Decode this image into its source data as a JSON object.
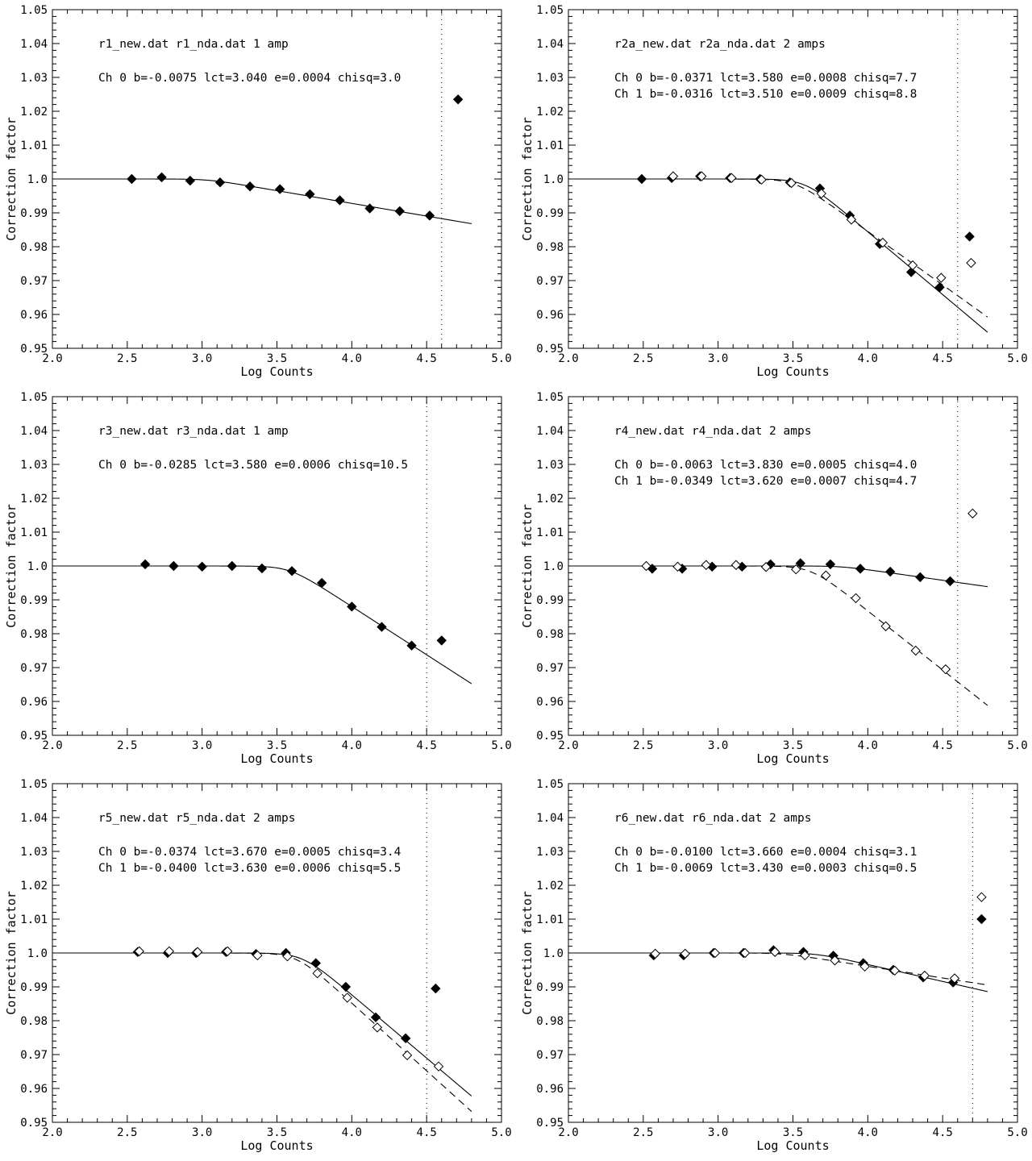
{
  "chart_data": [
    {
      "type": "scatter",
      "title": "",
      "annotations": {
        "files": "r1_new.dat   r1_nda.dat    1 amp",
        "ch0": "Ch 0   b=-0.0075 lct=3.040 e=0.0004 chisq=3.0",
        "ch1": ""
      },
      "xlabel": "Log Counts",
      "ylabel": "Correction factor",
      "xlim": [
        2.0,
        5.0
      ],
      "ylim": [
        0.95,
        1.05
      ],
      "xticks": [
        "2.0",
        "2.5",
        "3.0",
        "3.5",
        "4.0",
        "4.5",
        "5.0"
      ],
      "yticks": [
        "0.95",
        "0.96",
        "0.97",
        "0.98",
        "0.99",
        "1.0",
        "1.01",
        "1.02",
        "1.03",
        "1.04",
        "1.05"
      ],
      "cutoff_x": 4.6,
      "series": [
        {
          "channel": 0,
          "marker": "filled-diamond",
          "line": "solid",
          "b": -0.0075,
          "lct": 3.04,
          "x": [
            2.53,
            2.73,
            2.92,
            3.12,
            3.32,
            3.52,
            3.72,
            3.92,
            4.12,
            4.32,
            4.52,
            4.71
          ],
          "y": [
            1.0,
            1.0005,
            0.9995,
            0.999,
            0.9978,
            0.997,
            0.9955,
            0.9937,
            0.9913,
            0.9905,
            0.9892,
            1.0235
          ]
        }
      ]
    },
    {
      "type": "scatter",
      "title": "",
      "annotations": {
        "files": "r2a_new.dat   r2a_nda.dat    2 amps",
        "ch0": "Ch 0   b=-0.0371 lct=3.580 e=0.0008 chisq=7.7",
        "ch1": "Ch 1   b=-0.0316 lct=3.510 e=0.0009 chisq=8.8"
      },
      "xlabel": "Log Counts",
      "ylabel": "Correction factor",
      "xlim": [
        2.0,
        5.0
      ],
      "ylim": [
        0.95,
        1.05
      ],
      "xticks": [
        "2.0",
        "2.5",
        "3.0",
        "3.5",
        "4.0",
        "4.5",
        "5.0"
      ],
      "yticks": [
        "0.95",
        "0.96",
        "0.97",
        "0.98",
        "0.99",
        "1.0",
        "1.01",
        "1.02",
        "1.03",
        "1.04",
        "1.05"
      ],
      "cutoff_x": 4.6,
      "series": [
        {
          "channel": 0,
          "marker": "filled-diamond",
          "line": "solid",
          "b": -0.0371,
          "lct": 3.58,
          "x": [
            2.49,
            2.69,
            2.88,
            3.08,
            3.28,
            3.48,
            3.68,
            3.88,
            4.08,
            4.29,
            4.48,
            4.68
          ],
          "y": [
            1.0,
            1.0003,
            1.0008,
            1.0003,
            1.0,
            0.999,
            0.9972,
            0.9892,
            0.9808,
            0.9725,
            0.968,
            0.983
          ]
        },
        {
          "channel": 1,
          "marker": "open-diamond",
          "line": "dashed",
          "b": -0.0316,
          "lct": 3.51,
          "x": [
            2.7,
            2.89,
            3.09,
            3.29,
            3.49,
            3.69,
            3.89,
            4.1,
            4.3,
            4.49,
            4.69
          ],
          "y": [
            1.0008,
            1.0008,
            1.0003,
            0.9998,
            0.9988,
            0.9957,
            0.988,
            0.9812,
            0.9745,
            0.9708,
            0.9752
          ]
        }
      ]
    },
    {
      "type": "scatter",
      "title": "",
      "annotations": {
        "files": "r3_new.dat   r3_nda.dat    1 amp",
        "ch0": "Ch 0   b=-0.0285 lct=3.580 e=0.0006 chisq=10.5",
        "ch1": ""
      },
      "xlabel": "Log Counts",
      "ylabel": "Correction factor",
      "xlim": [
        2.0,
        5.0
      ],
      "ylim": [
        0.95,
        1.05
      ],
      "xticks": [
        "2.0",
        "2.5",
        "3.0",
        "3.5",
        "4.0",
        "4.5",
        "5.0"
      ],
      "yticks": [
        "0.95",
        "0.96",
        "0.97",
        "0.98",
        "0.99",
        "1.0",
        "1.01",
        "1.02",
        "1.03",
        "1.04",
        "1.05"
      ],
      "cutoff_x": 4.5,
      "series": [
        {
          "channel": 0,
          "marker": "filled-diamond",
          "line": "solid",
          "b": -0.0285,
          "lct": 3.58,
          "x": [
            2.62,
            2.81,
            3.0,
            3.2,
            3.4,
            3.6,
            3.8,
            4.0,
            4.2,
            4.4,
            4.6
          ],
          "y": [
            1.0005,
            1.0,
            0.9998,
            1.0,
            0.9993,
            0.9985,
            0.995,
            0.988,
            0.982,
            0.9765,
            0.978
          ]
        }
      ]
    },
    {
      "type": "scatter",
      "title": "",
      "annotations": {
        "files": "r4_new.dat   r4_nda.dat    2 amps",
        "ch0": "Ch 0   b=-0.0063 lct=3.830 e=0.0005 chisq=4.0",
        "ch1": "Ch 1   b=-0.0349 lct=3.620 e=0.0007 chisq=4.7"
      },
      "xlabel": "Log Counts",
      "ylabel": "Correction factor",
      "xlim": [
        2.0,
        5.0
      ],
      "ylim": [
        0.95,
        1.05
      ],
      "xticks": [
        "2.0",
        "2.5",
        "3.0",
        "3.5",
        "4.0",
        "4.5",
        "5.0"
      ],
      "yticks": [
        "0.95",
        "0.96",
        "0.97",
        "0.98",
        "0.99",
        "1.0",
        "1.01",
        "1.02",
        "1.03",
        "1.04",
        "1.05"
      ],
      "cutoff_x": 4.6,
      "series": [
        {
          "channel": 0,
          "marker": "filled-diamond",
          "line": "solid",
          "b": -0.0063,
          "lct": 3.83,
          "x": [
            2.56,
            2.76,
            2.96,
            3.16,
            3.35,
            3.55,
            3.75,
            3.95,
            4.15,
            4.35,
            4.55
          ],
          "y": [
            0.9992,
            0.9992,
            0.9998,
            0.9998,
            1.0005,
            1.0008,
            1.0005,
            0.9992,
            0.9983,
            0.9967,
            0.9955
          ]
        },
        {
          "channel": 1,
          "marker": "open-diamond",
          "line": "dashed",
          "b": -0.0349,
          "lct": 3.62,
          "x": [
            2.52,
            2.73,
            2.92,
            3.12,
            3.32,
            3.52,
            3.72,
            3.92,
            4.12,
            4.32,
            4.52,
            4.7
          ],
          "y": [
            1.0,
            0.9998,
            1.0003,
            1.0003,
            0.9997,
            0.999,
            0.9972,
            0.9905,
            0.9822,
            0.975,
            0.9695,
            1.0155
          ]
        }
      ]
    },
    {
      "type": "scatter",
      "title": "",
      "annotations": {
        "files": "r5_new.dat   r5_nda.dat    2 amps",
        "ch0": "Ch 0   b=-0.0374 lct=3.670 e=0.0005 chisq=3.4",
        "ch1": "Ch 1   b=-0.0400 lct=3.630 e=0.0006 chisq=5.5"
      },
      "xlabel": "Log Counts",
      "ylabel": "Correction factor",
      "xlim": [
        2.0,
        5.0
      ],
      "ylim": [
        0.95,
        1.05
      ],
      "xticks": [
        "2.0",
        "2.5",
        "3.0",
        "3.5",
        "4.0",
        "4.5",
        "5.0"
      ],
      "yticks": [
        "0.95",
        "0.96",
        "0.97",
        "0.98",
        "0.99",
        "1.0",
        "1.01",
        "1.02",
        "1.03",
        "1.04",
        "1.05"
      ],
      "cutoff_x": 4.5,
      "series": [
        {
          "channel": 0,
          "marker": "filled-diamond",
          "line": "solid",
          "b": -0.0374,
          "lct": 3.67,
          "x": [
            2.57,
            2.77,
            2.96,
            3.16,
            3.36,
            3.56,
            3.76,
            3.96,
            4.16,
            4.36,
            4.56
          ],
          "y": [
            1.0003,
            1.0,
            1.0,
            1.0003,
            0.9997,
            1.0,
            0.997,
            0.99,
            0.981,
            0.9748,
            0.9895
          ]
        },
        {
          "channel": 1,
          "marker": "open-diamond",
          "line": "dashed",
          "b": -0.04,
          "lct": 3.63,
          "x": [
            2.58,
            2.78,
            2.97,
            3.17,
            3.37,
            3.57,
            3.77,
            3.97,
            4.17,
            4.37,
            4.58
          ],
          "y": [
            1.0005,
            1.0005,
            1.0003,
            1.0005,
            0.9993,
            0.999,
            0.994,
            0.9868,
            0.978,
            0.9698,
            0.9665
          ]
        }
      ]
    },
    {
      "type": "scatter",
      "title": "",
      "annotations": {
        "files": "r6_new.dat   r6_nda.dat    2 amps",
        "ch0": "Ch 0   b=-0.0100 lct=3.660 e=0.0004 chisq=3.1",
        "ch1": "Ch 1   b=-0.0069 lct=3.430 e=0.0003 chisq=0.5"
      },
      "xlabel": "Log Counts",
      "ylabel": "Correction factor",
      "xlim": [
        2.0,
        5.0
      ],
      "ylim": [
        0.95,
        1.05
      ],
      "xticks": [
        "2.0",
        "2.5",
        "3.0",
        "3.5",
        "4.0",
        "4.5",
        "5.0"
      ],
      "yticks": [
        "0.95",
        "0.96",
        "0.97",
        "0.98",
        "0.99",
        "1.0",
        "1.01",
        "1.02",
        "1.03",
        "1.04",
        "1.05"
      ],
      "cutoff_x": 4.7,
      "series": [
        {
          "channel": 0,
          "marker": "filled-diamond",
          "line": "solid",
          "b": -0.01,
          "lct": 3.66,
          "x": [
            2.57,
            2.77,
            2.97,
            3.17,
            3.37,
            3.57,
            3.77,
            3.97,
            4.17,
            4.37,
            4.57,
            4.76
          ],
          "y": [
            0.9993,
            0.9993,
            1.0,
            1.0,
            1.0008,
            1.0003,
            0.9992,
            0.997,
            0.995,
            0.9928,
            0.9913,
            1.01
          ]
        },
        {
          "channel": 1,
          "marker": "open-diamond",
          "line": "dashed",
          "b": -0.0069,
          "lct": 3.43,
          "x": [
            2.58,
            2.78,
            2.98,
            3.18,
            3.38,
            3.58,
            3.78,
            3.98,
            4.18,
            4.38,
            4.58,
            4.76
          ],
          "y": [
            0.9998,
            0.9998,
            1.0,
            1.0,
            1.0003,
            0.9993,
            0.9978,
            0.996,
            0.9948,
            0.9933,
            0.9925,
            1.0165
          ]
        }
      ]
    }
  ]
}
